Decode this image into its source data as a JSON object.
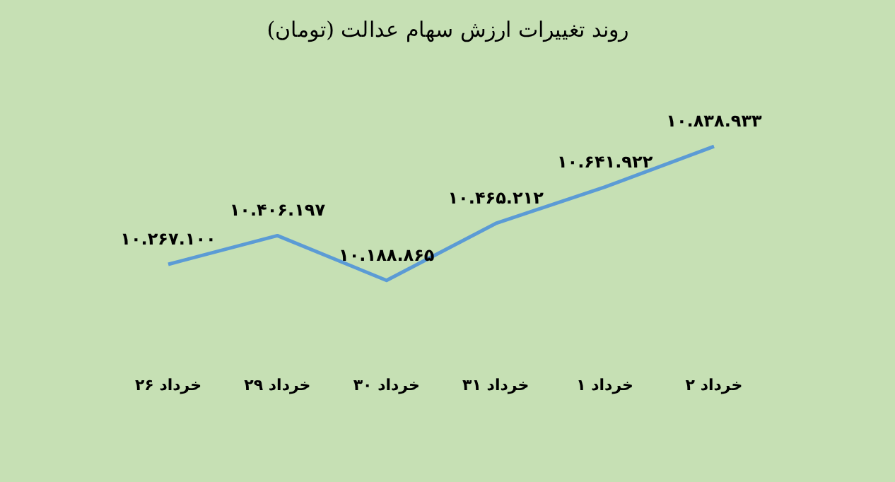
{
  "chart_data": {
    "type": "line",
    "title": "روند تغییرات ارزش سهام عدالت (تومان)",
    "categories": [
      "۲۶ خرداد",
      "۲۹ خرداد",
      "۳۰ خرداد",
      "۳۱ خرداد",
      "۱ خرداد",
      "۲ خرداد"
    ],
    "series": [
      {
        "color": "#5b9bd5",
        "values": [
          10267100,
          10406197,
          10188865,
          10465212,
          10641922,
          10838933
        ],
        "value_labels": [
          "۱۰.۲۶۷.۱۰۰",
          "۱۰.۴۰۶.۱۹۷",
          "۱۰.۱۸۸.۸۶۵",
          "۱۰.۴۶۵.۲۱۲",
          "۱۰.۶۴۱.۹۲۲",
          "۱۰.۸۳۸.۹۳۳"
        ]
      }
    ],
    "marker": "none",
    "grid": false,
    "legend": false
  }
}
